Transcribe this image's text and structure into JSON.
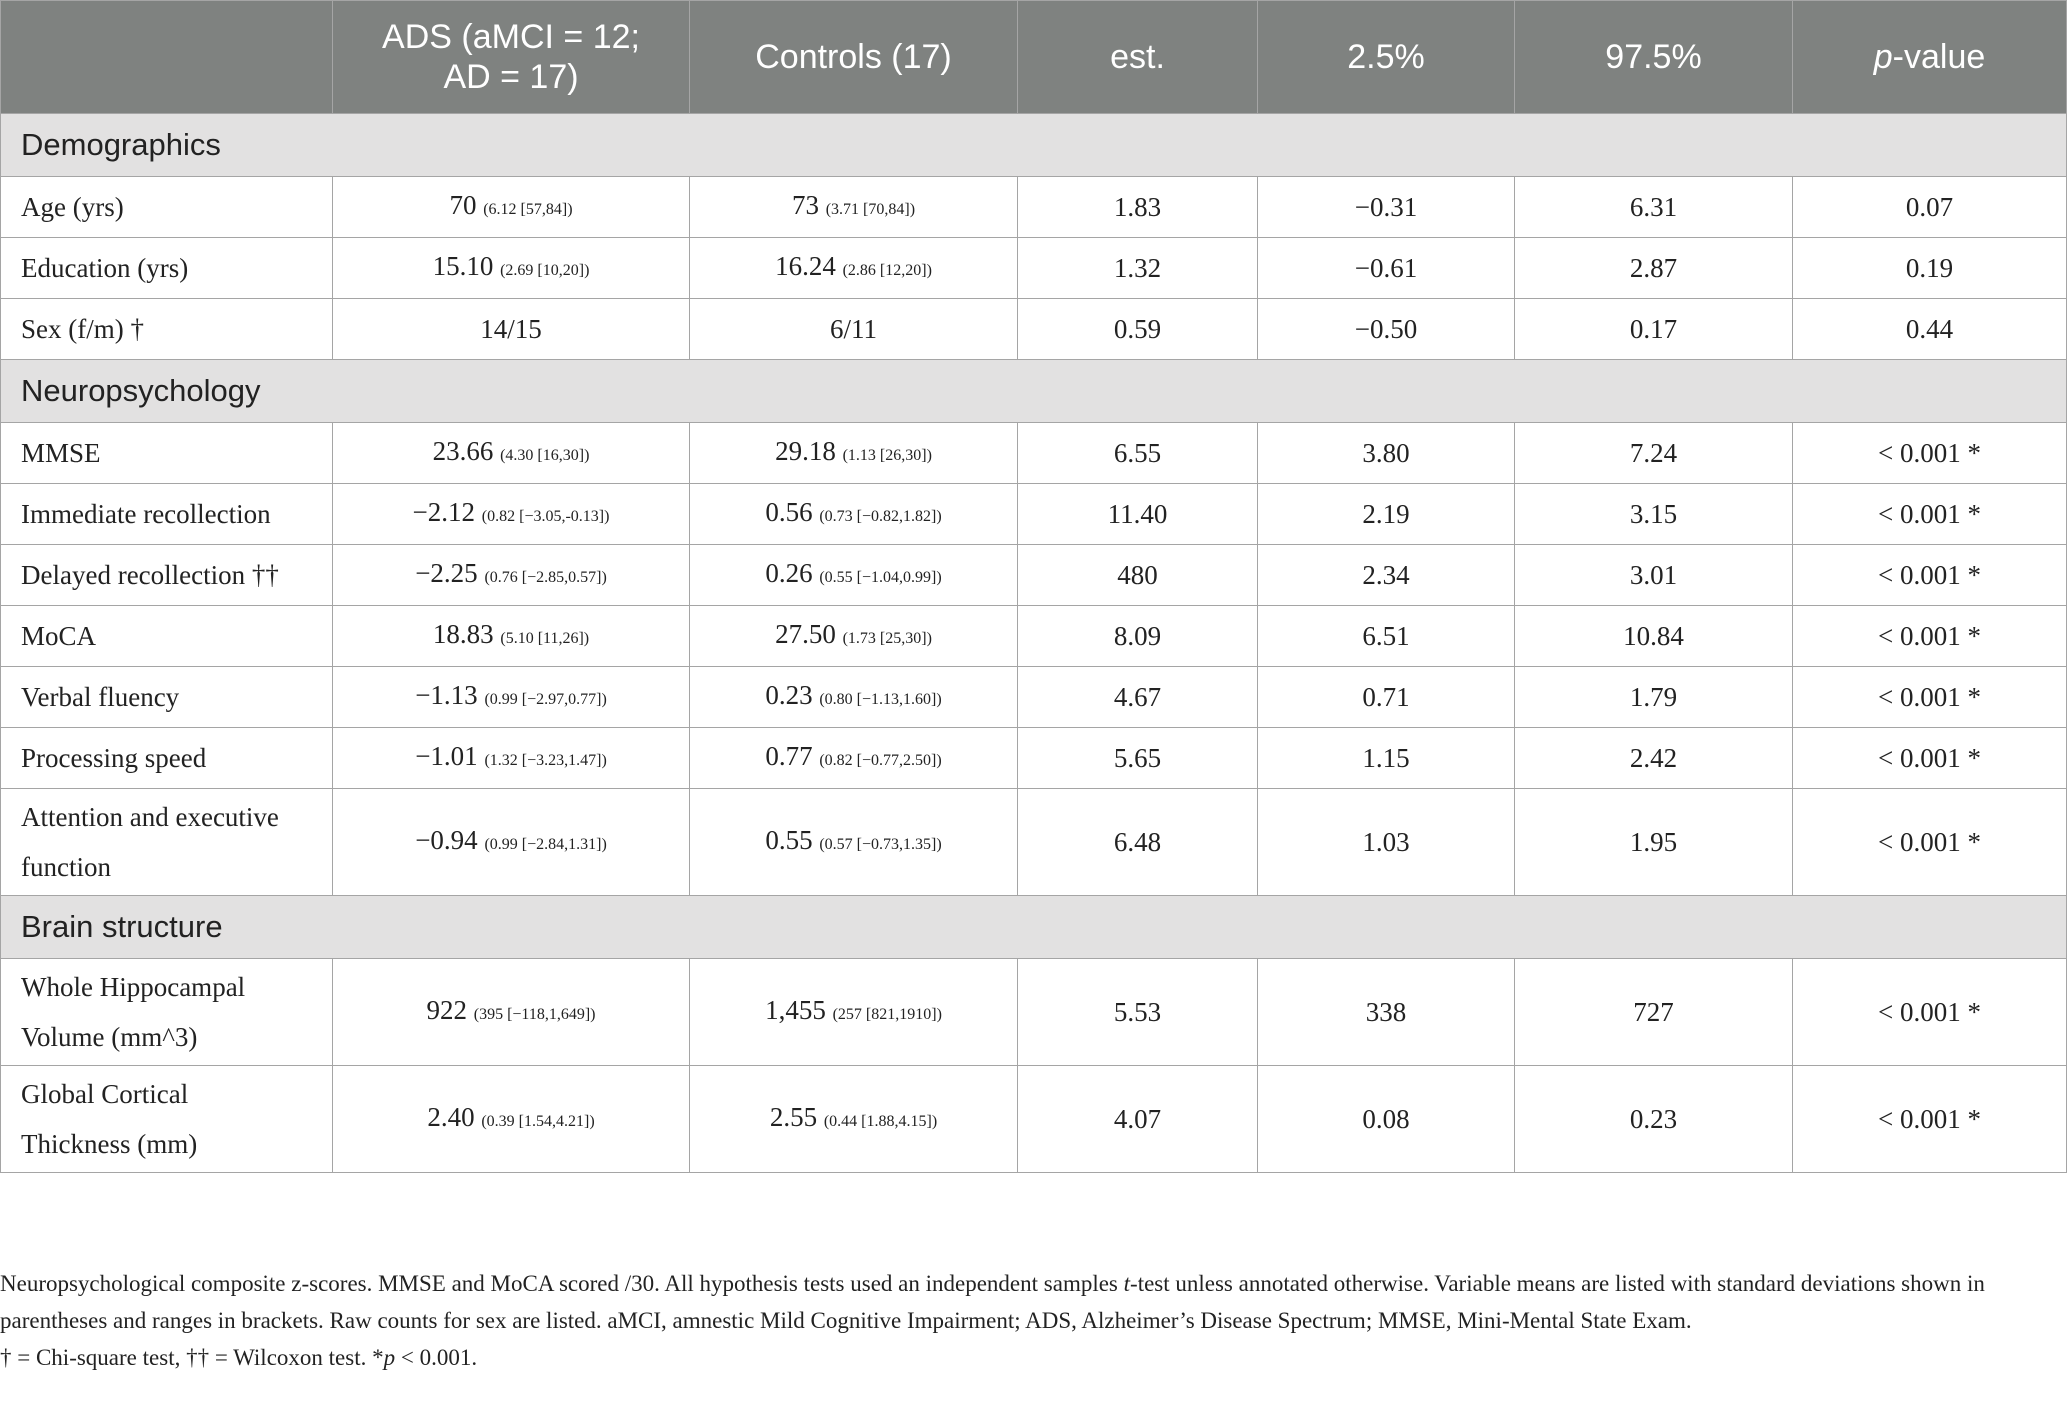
{
  "header": {
    "col0": "",
    "col1_line1": "ADS (aMCI = 12;",
    "col1_line2": "AD = 17)",
    "col2": "Controls (17)",
    "col3": "est.",
    "col4": "2.5%",
    "col5": "97.5%",
    "col6_italic": "p",
    "col6_rest": "-value"
  },
  "sections": {
    "demographics": "Demographics",
    "neuropsychology": "Neuropsychology",
    "brain_structure": "Brain structure"
  },
  "rows": {
    "age": {
      "label": "Age (yrs)",
      "ads": "70",
      "ads_sub": "(6.12 [57,84])",
      "ctrl": "73",
      "ctrl_sub": "(3.71 [70,84])",
      "est": "1.83",
      "lo": "−0.31",
      "hi": "6.31",
      "p": "0.07"
    },
    "education": {
      "label": "Education (yrs)",
      "ads": "15.10",
      "ads_sub": "(2.69 [10,20])",
      "ctrl": "16.24",
      "ctrl_sub": "(2.86 [12,20])",
      "est": "1.32",
      "lo": "−0.61",
      "hi": "2.87",
      "p": "0.19"
    },
    "sex": {
      "label": "Sex (f/m) †",
      "ads": "14/15",
      "ctrl": "6/11",
      "est": "0.59",
      "lo": "−0.50",
      "hi": "0.17",
      "p": "0.44"
    },
    "mmse": {
      "label": "MMSE",
      "ads": "23.66",
      "ads_sub": "(4.30 [16,30])",
      "ctrl": "29.18",
      "ctrl_sub": "(1.13 [26,30])",
      "est": "6.55",
      "lo": "3.80",
      "hi": "7.24",
      "p": "< 0.001 *"
    },
    "immediate": {
      "label": "Immediate recollection",
      "ads": "−2.12",
      "ads_sub": "(0.82 [−3.05,-0.13])",
      "ctrl": "0.56",
      "ctrl_sub": "(0.73 [−0.82,1.82])",
      "est": "11.40",
      "lo": "2.19",
      "hi": "3.15",
      "p": "< 0.001 *"
    },
    "delayed": {
      "label": "Delayed recollection ††",
      "ads": "−2.25",
      "ads_sub": "(0.76 [−2.85,0.57])",
      "ctrl": "0.26",
      "ctrl_sub": "(0.55 [−1.04,0.99])",
      "est": "480",
      "lo": "2.34",
      "hi": "3.01",
      "p": "< 0.001 *"
    },
    "moca": {
      "label": "MoCA",
      "ads": "18.83",
      "ads_sub": "(5.10 [11,26])",
      "ctrl": "27.50",
      "ctrl_sub": "(1.73 [25,30])",
      "est": "8.09",
      "lo": "6.51",
      "hi": "10.84",
      "p": "< 0.001 *"
    },
    "verbal": {
      "label": "Verbal fluency",
      "ads": "−1.13",
      "ads_sub": "(0.99 [−2.97,0.77])",
      "ctrl": "0.23",
      "ctrl_sub": "(0.80 [−1.13,1.60])",
      "est": "4.67",
      "lo": "0.71",
      "hi": "1.79",
      "p": "< 0.001 *"
    },
    "processing": {
      "label": "Processing speed",
      "ads": "−1.01",
      "ads_sub": "(1.32 [−3.23,1.47])",
      "ctrl": "0.77",
      "ctrl_sub": "(0.82 [−0.77,2.50])",
      "est": "5.65",
      "lo": "1.15",
      "hi": "2.42",
      "p": "< 0.001 *"
    },
    "attention": {
      "label_line1": "Attention and executive",
      "label_line2": "function",
      "ads": "−0.94",
      "ads_sub": "(0.99 [−2.84,1.31])",
      "ctrl": "0.55",
      "ctrl_sub": "(0.57 [−0.73,1.35])",
      "est": "6.48",
      "lo": "1.03",
      "hi": "1.95",
      "p": "< 0.001 *"
    },
    "hippocampal": {
      "label_line1": "Whole Hippocampal",
      "label_line2": "Volume (mm^3)",
      "ads": "922",
      "ads_sub": "(395 [−118,1,649])",
      "ctrl": "1,455",
      "ctrl_sub": "(257 [821,1910])",
      "est": "5.53",
      "lo": "338",
      "hi": "727",
      "p": "< 0.001 *"
    },
    "cortical": {
      "label_line1": "Global Cortical",
      "label_line2": "Thickness (mm)",
      "ads": "2.40",
      "ads_sub": "(0.39 [1.54,4.21])",
      "ctrl": "2.55",
      "ctrl_sub": "(0.44 [1.88,4.15])",
      "est": "4.07",
      "lo": "0.08",
      "hi": "0.23",
      "p": "< 0.001 *"
    }
  },
  "notes": {
    "n1_a": "Neuropsychological composite z-scores. MMSE and MoCA scored /30. All hypothesis tests used an independent samples ",
    "n1_t": "t",
    "n1_b": "-test unless annotated otherwise. Variable means are listed with standard deviations shown in parentheses and ranges in brackets. Raw counts for sex are listed. aMCI, amnestic Mild Cognitive Impairment; ADS, Alzheimer’s Disease Spectrum; MMSE, Mini-Mental State Exam.",
    "n2_a": "† = Chi-square test, †† = Wilcoxon test. *",
    "n2_p": "p",
    "n2_b": " < 0.001."
  }
}
